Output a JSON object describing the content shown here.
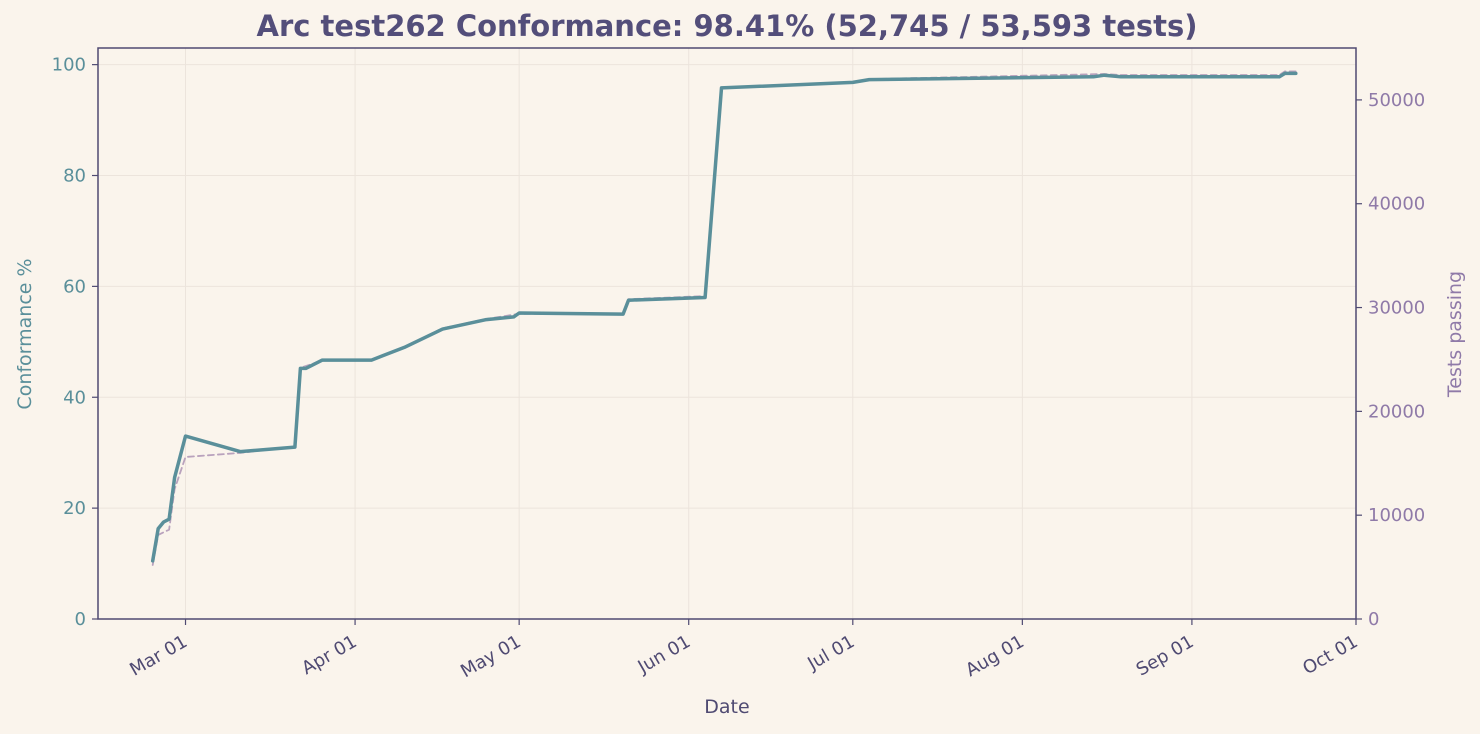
{
  "chart_data": {
    "type": "line",
    "title": "Arc test262 Conformance: 98.41% (52,745 / 53,593 tests)",
    "xlabel": "Date",
    "ylabel_left": "Conformance %",
    "ylabel_right": "Tests passing",
    "x_ticks": [
      {
        "date": "2025-03-01",
        "label": "Mar 01"
      },
      {
        "date": "2025-04-01",
        "label": "Apr 01"
      },
      {
        "date": "2025-05-01",
        "label": "May 01"
      },
      {
        "date": "2025-06-01",
        "label": "Jun 01"
      },
      {
        "date": "2025-07-01",
        "label": "Jul 01"
      },
      {
        "date": "2025-08-01",
        "label": "Aug 01"
      },
      {
        "date": "2025-09-01",
        "label": "Sep 01"
      },
      {
        "date": "2025-10-01",
        "label": "Oct 01"
      }
    ],
    "xlim": [
      "2025-02-13",
      "2025-10-01"
    ],
    "ylim_left": [
      0,
      103
    ],
    "ylim_right": [
      0,
      55000
    ],
    "y_ticks_left": [
      0,
      20,
      40,
      60,
      80,
      100
    ],
    "y_ticks_right": [
      0,
      10000,
      20000,
      30000,
      40000,
      50000
    ],
    "grid": true,
    "series": [
      {
        "axis": "left",
        "color": "#5a8f9a",
        "style": "solid",
        "points": [
          [
            "2025-02-23",
            10.5
          ],
          [
            "2025-02-24",
            16.3
          ],
          [
            "2025-02-25",
            17.5
          ],
          [
            "2025-02-26",
            18.0
          ],
          [
            "2025-02-27",
            25.5
          ],
          [
            "2025-03-01",
            33.0
          ],
          [
            "2025-03-11",
            30.2
          ],
          [
            "2025-03-21",
            31.0
          ],
          [
            "2025-03-22",
            45.2
          ],
          [
            "2025-03-23",
            45.2
          ],
          [
            "2025-03-26",
            46.7
          ],
          [
            "2025-04-04",
            46.7
          ],
          [
            "2025-04-10",
            49.0
          ],
          [
            "2025-04-17",
            52.3
          ],
          [
            "2025-04-25",
            54.0
          ],
          [
            "2025-04-30",
            54.5
          ],
          [
            "2025-05-01",
            55.2
          ],
          [
            "2025-05-20",
            55.0
          ],
          [
            "2025-05-21",
            57.5
          ],
          [
            "2025-06-04",
            58.0
          ],
          [
            "2025-06-07",
            95.8
          ],
          [
            "2025-07-01",
            96.8
          ],
          [
            "2025-07-04",
            97.3
          ],
          [
            "2025-08-14",
            97.8
          ],
          [
            "2025-08-16",
            98.1
          ],
          [
            "2025-08-19",
            97.8
          ],
          [
            "2025-09-17",
            97.8
          ],
          [
            "2025-09-18",
            98.41
          ],
          [
            "2025-09-20",
            98.41
          ]
        ]
      },
      {
        "axis": "right",
        "color": "#b9a2bd",
        "style": "dashed",
        "points": [
          [
            "2025-02-23",
            5200
          ],
          [
            "2025-02-24",
            8100
          ],
          [
            "2025-02-26",
            8600
          ],
          [
            "2025-02-27",
            12500
          ],
          [
            "2025-03-01",
            15600
          ],
          [
            "2025-03-11",
            16000
          ],
          [
            "2025-03-21",
            16600
          ],
          [
            "2025-03-22",
            24200
          ],
          [
            "2025-03-26",
            24900
          ],
          [
            "2025-04-04",
            24900
          ],
          [
            "2025-04-10",
            26200
          ],
          [
            "2025-04-17",
            28000
          ],
          [
            "2025-04-25",
            28900
          ],
          [
            "2025-05-01",
            29400
          ],
          [
            "2025-05-20",
            29400
          ],
          [
            "2025-05-21",
            30800
          ],
          [
            "2025-06-04",
            31100
          ],
          [
            "2025-06-07",
            51200
          ],
          [
            "2025-07-01",
            51700
          ],
          [
            "2025-07-04",
            52000
          ],
          [
            "2025-08-16",
            52500
          ],
          [
            "2025-08-19",
            52400
          ],
          [
            "2025-09-17",
            52400
          ],
          [
            "2025-09-18",
            52745
          ],
          [
            "2025-09-20",
            52745
          ]
        ]
      }
    ],
    "colors": {
      "background": "#faf4ec",
      "frame": "#4f4a72",
      "title": "#534e7a",
      "left_axis": "#5a8f9a",
      "right_axis": "#8f7aa8",
      "x_axis_text": "#4f4a72",
      "grid": "#ece4dc"
    }
  }
}
